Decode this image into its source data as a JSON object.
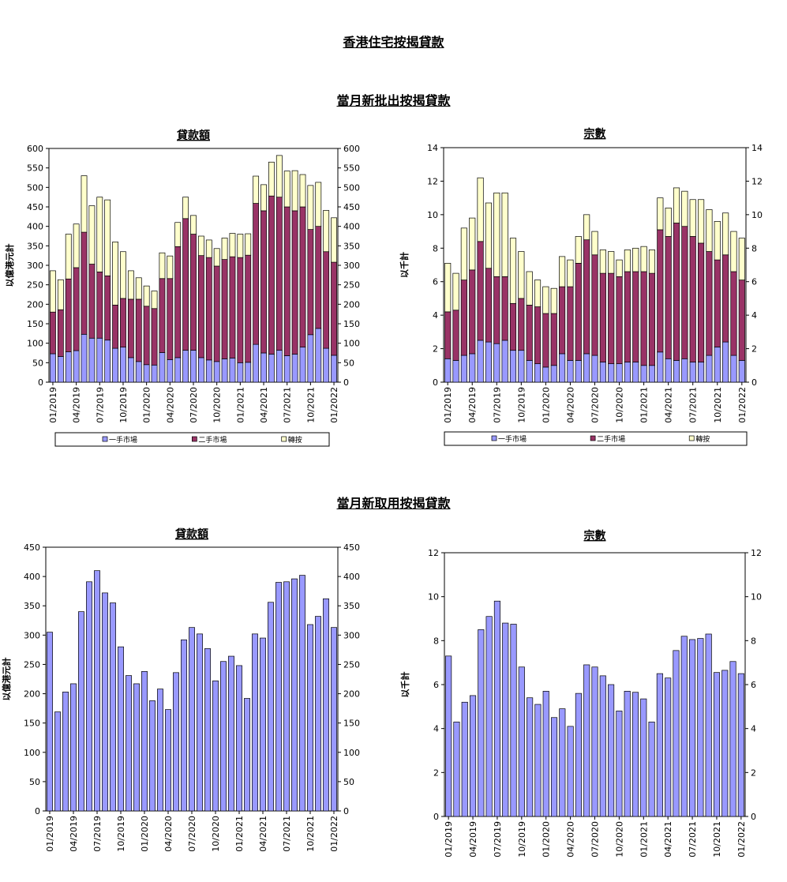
{
  "page": {
    "title": "香港住宅按揭貸款",
    "section1_title": "當月新批出按揭貸款",
    "section2_title": "當月新取用按揭貸款"
  },
  "colors": {
    "first_hand": "#9999ff",
    "second_hand": "#993366",
    "refinance": "#ffffcc",
    "single": "#9999ff"
  },
  "chart_data": [
    {
      "id": "approved-amount",
      "type": "bar",
      "stacked": true,
      "title": "貸款額",
      "ylabel": "以億港元計",
      "ylim": [
        0,
        600
      ],
      "yticks": [
        0,
        50,
        100,
        150,
        200,
        250,
        300,
        350,
        400,
        450,
        500,
        550,
        600
      ],
      "xtick_labels": [
        "01/2019",
        "04/2019",
        "07/2019",
        "10/2019",
        "01/2020",
        "04/2020",
        "07/2020",
        "10/2020",
        "01/2021",
        "04/2021",
        "07/2021",
        "10/2021",
        "01/2022"
      ],
      "legend": "bottom",
      "series": [
        {
          "name": "一手市場",
          "color": "#9999ff",
          "values": [
            73,
            66,
            78,
            81,
            123,
            113,
            113,
            108,
            87,
            90,
            63,
            53,
            45,
            44,
            76,
            58,
            63,
            82,
            82,
            63,
            57,
            53,
            60,
            62,
            50,
            51,
            97,
            75,
            72,
            82,
            68,
            72,
            90,
            122,
            138,
            87,
            69
          ]
        },
        {
          "name": "二手市場",
          "color": "#993366",
          "values": [
            107,
            120,
            187,
            213,
            262,
            190,
            170,
            165,
            111,
            125,
            150,
            160,
            150,
            145,
            190,
            208,
            285,
            338,
            298,
            262,
            263,
            245,
            255,
            260,
            270,
            275,
            362,
            365,
            406,
            393,
            382,
            368,
            360,
            270,
            262,
            248,
            239
          ]
        },
        {
          "name": "轉按",
          "color": "#ffffcc",
          "values": [
            106,
            77,
            115,
            112,
            145,
            150,
            192,
            195,
            162,
            120,
            73,
            55,
            52,
            45,
            66,
            58,
            62,
            55,
            48,
            50,
            45,
            45,
            55,
            60,
            60,
            55,
            70,
            67,
            87,
            107,
            92,
            103,
            83,
            113,
            113,
            106,
            114
          ]
        }
      ]
    },
    {
      "id": "approved-cases",
      "type": "bar",
      "stacked": true,
      "title": "宗數",
      "ylabel": "以千計",
      "ylim": [
        0,
        14
      ],
      "yticks": [
        0,
        2,
        4,
        6,
        8,
        10,
        12,
        14
      ],
      "xtick_labels": [
        "01/2019",
        "04/2019",
        "07/2019",
        "10/2019",
        "01/2020",
        "04/2020",
        "07/2020",
        "10/2020",
        "01/2021",
        "04/2021",
        "07/2021",
        "10/2021",
        "01/2022"
      ],
      "legend": "bottom",
      "series": [
        {
          "name": "一手市場",
          "color": "#9999ff",
          "values": [
            1.4,
            1.3,
            1.6,
            1.7,
            2.5,
            2.4,
            2.3,
            2.5,
            1.9,
            1.9,
            1.3,
            1.1,
            0.9,
            1.0,
            1.7,
            1.3,
            1.3,
            1.7,
            1.6,
            1.2,
            1.1,
            1.1,
            1.2,
            1.2,
            1.0,
            1.0,
            1.8,
            1.4,
            1.3,
            1.4,
            1.2,
            1.2,
            1.6,
            2.1,
            2.4,
            1.6,
            1.3
          ]
        },
        {
          "name": "二手市場",
          "color": "#993366",
          "values": [
            2.8,
            3.0,
            4.5,
            5.0,
            5.9,
            4.4,
            4.0,
            3.8,
            2.8,
            3.1,
            3.3,
            3.4,
            3.2,
            3.1,
            4.0,
            4.4,
            5.8,
            6.8,
            6.0,
            5.3,
            5.4,
            5.2,
            5.4,
            5.4,
            5.6,
            5.5,
            7.3,
            7.3,
            8.2,
            7.9,
            7.5,
            7.1,
            6.2,
            5.2,
            5.2,
            5.0,
            4.8
          ]
        },
        {
          "name": "轉按",
          "color": "#ffffcc",
          "values": [
            2.9,
            2.2,
            3.1,
            3.1,
            3.8,
            3.9,
            5.0,
            5.0,
            3.9,
            2.8,
            2.0,
            1.6,
            1.6,
            1.5,
            1.8,
            1.6,
            1.6,
            1.5,
            1.4,
            1.4,
            1.3,
            1.0,
            1.3,
            1.4,
            1.5,
            1.4,
            1.9,
            1.7,
            2.1,
            2.1,
            2.2,
            2.6,
            2.5,
            2.3,
            2.5,
            2.4,
            2.5
          ]
        }
      ]
    },
    {
      "id": "drawn-amount",
      "type": "bar",
      "stacked": false,
      "title": "貸款額",
      "ylabel": "以億港元計",
      "ylim": [
        0,
        450
      ],
      "yticks": [
        0,
        50,
        100,
        150,
        200,
        250,
        300,
        350,
        400,
        450
      ],
      "xtick_labels": [
        "01/2019",
        "04/2019",
        "07/2019",
        "10/2019",
        "01/2020",
        "04/2020",
        "07/2020",
        "10/2020",
        "01/2021",
        "04/2021",
        "07/2021",
        "10/2021",
        "01/2022"
      ],
      "legend": "none",
      "series": [
        {
          "name": "",
          "color": "#9999ff",
          "values": [
            305,
            169,
            203,
            217,
            340,
            391,
            410,
            372,
            355,
            280,
            231,
            217,
            238,
            188,
            208,
            173,
            236,
            292,
            313,
            302,
            277,
            222,
            255,
            264,
            248,
            192,
            302,
            295,
            356,
            390,
            391,
            396,
            402,
            318,
            332,
            362,
            313
          ]
        }
      ]
    },
    {
      "id": "drawn-cases",
      "type": "bar",
      "stacked": false,
      "title": "宗數",
      "ylabel": "以千計",
      "ylim": [
        0,
        12
      ],
      "yticks": [
        0,
        2,
        4,
        6,
        8,
        10,
        12
      ],
      "xtick_labels": [
        "01/2019",
        "04/2019",
        "07/2019",
        "10/2019",
        "01/2020",
        "04/2020",
        "07/2020",
        "10/2020",
        "01/2021",
        "04/2021",
        "07/2021",
        "10/2021",
        "01/2022"
      ],
      "legend": "none",
      "series": [
        {
          "name": "",
          "color": "#9999ff",
          "values": [
            7.3,
            4.3,
            5.2,
            5.5,
            8.5,
            9.1,
            9.8,
            8.8,
            8.75,
            6.8,
            5.4,
            5.1,
            5.7,
            4.5,
            4.9,
            4.1,
            5.6,
            6.9,
            6.8,
            6.4,
            6.0,
            4.8,
            5.7,
            5.65,
            5.35,
            4.3,
            6.5,
            6.3,
            7.55,
            8.2,
            8.05,
            8.1,
            8.3,
            6.55,
            6.65,
            7.05,
            6.5
          ]
        }
      ]
    }
  ]
}
